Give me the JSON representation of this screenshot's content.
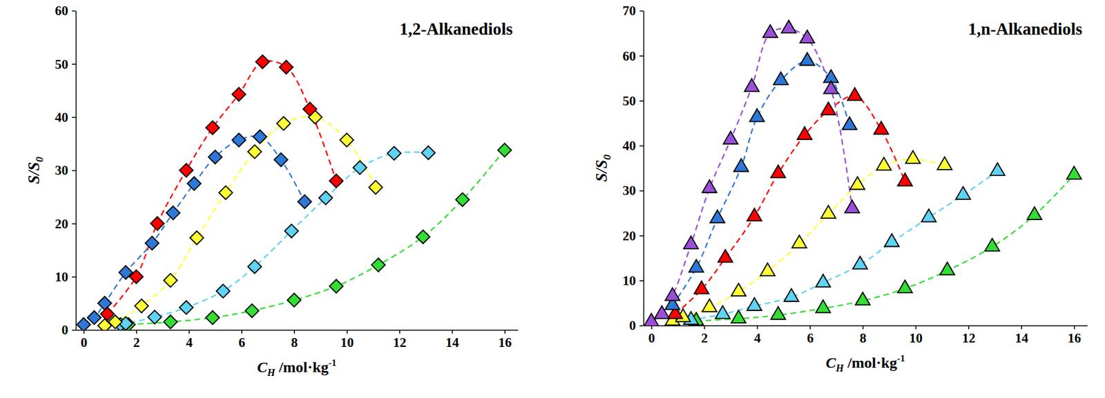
{
  "chart_data": [
    {
      "type": "line",
      "title": "1,2-Alkanediols",
      "xlabel": "CH /mol·kg-1",
      "ylabel": "S/S0",
      "marker": "diamond",
      "line_style": "dashed",
      "xlim": [
        -0.3,
        16.5
      ],
      "xticks": [
        0,
        2,
        4,
        6,
        8,
        10,
        12,
        14,
        16
      ],
      "ylim": [
        0,
        60
      ],
      "yticks": [
        0,
        10,
        20,
        30,
        40,
        50,
        60
      ],
      "series": [
        {
          "color": "#33dd33",
          "x": [
            1.7,
            3.3,
            4.9,
            6.4,
            8.0,
            9.6,
            11.2,
            12.9,
            14.4,
            16.0
          ],
          "y": [
            1,
            1.5,
            2.3,
            3.6,
            5.6,
            8.2,
            12.2,
            17.5,
            24.5,
            33.8
          ]
        },
        {
          "color": "#5fd3f3",
          "x": [
            1.4,
            1.6,
            2.7,
            3.9,
            5.3,
            6.5,
            7.9,
            9.2,
            10.5,
            11.8,
            13.1
          ],
          "y": [
            1,
            1.2,
            2.4,
            4.2,
            7.3,
            11.9,
            18.6,
            24.8,
            30.5,
            33.2,
            33.3
          ]
        },
        {
          "color": "#ffff33",
          "x": [
            0.8,
            1.2,
            2.2,
            3.3,
            4.3,
            5.4,
            6.5,
            7.6,
            8.8,
            10.0,
            11.1
          ],
          "y": [
            0.8,
            1.5,
            4.5,
            9.3,
            17.3,
            25.8,
            33.5,
            38.8,
            40,
            35.7,
            26.8
          ]
        },
        {
          "color": "#2e78d8",
          "x": [
            0,
            0.4,
            0.8,
            1.6,
            2.6,
            3.4,
            4.2,
            5.0,
            5.9,
            6.7,
            7.5,
            8.4
          ],
          "y": [
            1,
            2.3,
            5,
            10.8,
            16.3,
            22,
            27.5,
            32.5,
            35.7,
            36.3,
            32,
            24.1
          ]
        },
        {
          "color": "#ff0000",
          "x": [
            0.9,
            2.0,
            2.8,
            3.9,
            4.9,
            5.9,
            6.8,
            7.7,
            8.6,
            9.6
          ],
          "y": [
            3,
            10,
            20,
            30,
            38,
            44.3,
            50.4,
            49.4,
            41.5,
            28
          ]
        }
      ]
    },
    {
      "type": "line",
      "title": "1,n-Alkanediols",
      "xlabel": "CH /mol·kg-1",
      "ylabel": "S/S0",
      "marker": "triangle",
      "line_style": "dashed",
      "xlim": [
        -0.3,
        16.5
      ],
      "xticks": [
        0,
        2,
        4,
        6,
        8,
        10,
        12,
        14,
        16
      ],
      "ylim": [
        0,
        70
      ],
      "yticks": [
        0,
        10,
        20,
        30,
        40,
        50,
        60,
        70
      ],
      "series": [
        {
          "color": "#33dd33",
          "x": [
            1.7,
            3.3,
            4.8,
            6.5,
            8.0,
            9.6,
            11.2,
            12.9,
            14.5,
            16.0
          ],
          "y": [
            1,
            1.5,
            2.3,
            3.8,
            5.5,
            8.2,
            12.2,
            17.5,
            24.5,
            33.5
          ]
        },
        {
          "color": "#5fd3f3",
          "x": [
            1.5,
            2.7,
            3.9,
            5.3,
            6.5,
            7.9,
            9.1,
            10.5,
            11.8,
            13.1
          ],
          "y": [
            1.2,
            2.5,
            4.3,
            6.3,
            9.5,
            13.5,
            18.5,
            24,
            29,
            34.3
          ]
        },
        {
          "color": "#ffff33",
          "x": [
            0.8,
            1.2,
            2.2,
            3.3,
            4.4,
            5.6,
            6.7,
            7.8,
            8.8,
            9.9,
            11.1
          ],
          "y": [
            1,
            1.8,
            4,
            7.5,
            12,
            18.2,
            24.8,
            31.2,
            35.5,
            37,
            35.6
          ]
        },
        {
          "color": "#ff0000",
          "x": [
            0.9,
            1.9,
            2.8,
            3.9,
            4.8,
            5.8,
            6.7,
            7.7,
            8.7,
            9.6
          ],
          "y": [
            2.5,
            8,
            15,
            24.2,
            33.8,
            42.3,
            47.8,
            51,
            43.5,
            32
          ]
        },
        {
          "color": "#2e78d8",
          "x": [
            0.8,
            1.7,
            2.5,
            3.4,
            4.0,
            4.9,
            5.9,
            6.8,
            7.5
          ],
          "y": [
            4.5,
            12.8,
            23.8,
            35.2,
            46.3,
            54.5,
            58.8,
            55,
            44.5
          ]
        },
        {
          "color": "#9b4fd8",
          "x": [
            0,
            0.4,
            0.8,
            1.5,
            2.2,
            3.0,
            3.8,
            4.5,
            5.2,
            5.9,
            6.8,
            7.6
          ],
          "y": [
            0.8,
            2.5,
            6.5,
            18,
            30.5,
            41.3,
            53,
            65,
            66,
            63.8,
            52.5,
            26
          ]
        }
      ]
    }
  ]
}
